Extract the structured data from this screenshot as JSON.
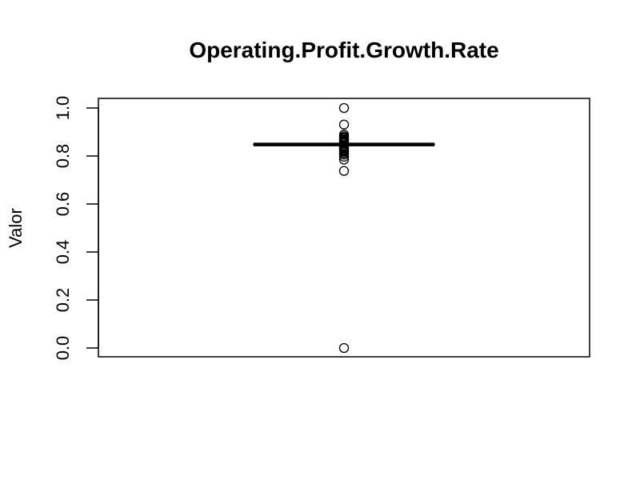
{
  "chart_data": {
    "type": "box",
    "title": "Operating.Profit.Growth.Rate",
    "xlabel": "",
    "ylabel": "Valor",
    "ylim": [
      0,
      1
    ],
    "yticks": [
      "0.0",
      "0.2",
      "0.4",
      "0.6",
      "0.8",
      "1.0"
    ],
    "box": {
      "q1": 0.848,
      "median": 0.848,
      "q3": 0.849,
      "whisker_low": 0.846,
      "whisker_high": 0.851
    },
    "outliers": [
      1.0,
      0.931,
      0.889,
      0.882,
      0.877,
      0.872,
      0.868,
      0.864,
      0.86,
      0.857,
      0.854,
      0.852,
      0.843,
      0.84,
      0.836,
      0.832,
      0.828,
      0.823,
      0.818,
      0.812,
      0.806,
      0.797,
      0.785,
      0.738,
      0.0
    ]
  }
}
